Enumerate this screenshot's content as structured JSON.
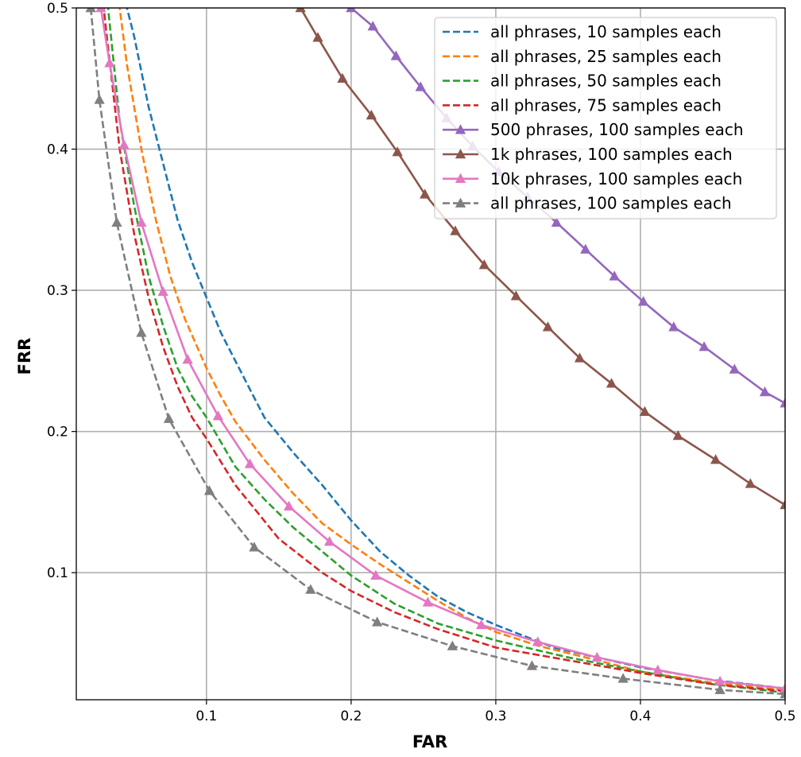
{
  "chart_data": {
    "type": "line",
    "xlabel": "FAR",
    "ylabel": "FRR",
    "xlim": [
      0.01,
      0.5
    ],
    "ylim": [
      0.01,
      0.5
    ],
    "x_ticks": [
      0.1,
      0.2,
      0.3,
      0.4,
      0.5
    ],
    "x_tick_labels": [
      "0.1",
      "0.2",
      "0.3",
      "0.4",
      "0.5"
    ],
    "y_ticks": [
      0.1,
      0.2,
      0.3,
      0.4,
      0.5
    ],
    "y_tick_labels": [
      "0.1",
      "0.2",
      "0.3",
      "0.4",
      "0.5"
    ],
    "grid": true,
    "legend_position": "top-right",
    "series": [
      {
        "name": "all phrases, 10 samples each",
        "color": "#1f77b4",
        "style": "dashed",
        "marker": "none",
        "points": [
          [
            0.04,
            0.54
          ],
          [
            0.045,
            0.5
          ],
          [
            0.05,
            0.48
          ],
          [
            0.06,
            0.43
          ],
          [
            0.07,
            0.39
          ],
          [
            0.08,
            0.35
          ],
          [
            0.09,
            0.32
          ],
          [
            0.1,
            0.295
          ],
          [
            0.11,
            0.27
          ],
          [
            0.12,
            0.25
          ],
          [
            0.13,
            0.23
          ],
          [
            0.14,
            0.21
          ],
          [
            0.16,
            0.185
          ],
          [
            0.18,
            0.162
          ],
          [
            0.2,
            0.137
          ],
          [
            0.22,
            0.115
          ],
          [
            0.24,
            0.098
          ],
          [
            0.26,
            0.083
          ],
          [
            0.28,
            0.072
          ],
          [
            0.3,
            0.063
          ],
          [
            0.32,
            0.055
          ],
          [
            0.34,
            0.047
          ],
          [
            0.37,
            0.04
          ],
          [
            0.4,
            0.033
          ],
          [
            0.45,
            0.024
          ],
          [
            0.5,
            0.018
          ]
        ]
      },
      {
        "name": "all phrases, 25 samples each",
        "color": "#ff7f0e",
        "style": "dashed",
        "marker": "none",
        "points": [
          [
            0.035,
            0.54
          ],
          [
            0.04,
            0.5
          ],
          [
            0.045,
            0.46
          ],
          [
            0.055,
            0.4
          ],
          [
            0.065,
            0.35
          ],
          [
            0.075,
            0.31
          ],
          [
            0.085,
            0.28
          ],
          [
            0.1,
            0.245
          ],
          [
            0.11,
            0.225
          ],
          [
            0.12,
            0.207
          ],
          [
            0.14,
            0.18
          ],
          [
            0.16,
            0.156
          ],
          [
            0.18,
            0.135
          ],
          [
            0.2,
            0.12
          ],
          [
            0.22,
            0.106
          ],
          [
            0.24,
            0.093
          ],
          [
            0.26,
            0.08
          ],
          [
            0.28,
            0.068
          ],
          [
            0.3,
            0.058
          ],
          [
            0.33,
            0.048
          ],
          [
            0.37,
            0.038
          ],
          [
            0.4,
            0.03
          ],
          [
            0.45,
            0.022
          ],
          [
            0.5,
            0.017
          ]
        ]
      },
      {
        "name": "all phrases, 50 samples each",
        "color": "#2ca02c",
        "style": "dashed",
        "marker": "none",
        "points": [
          [
            0.028,
            0.54
          ],
          [
            0.032,
            0.5
          ],
          [
            0.04,
            0.42
          ],
          [
            0.05,
            0.36
          ],
          [
            0.06,
            0.31
          ],
          [
            0.07,
            0.275
          ],
          [
            0.08,
            0.245
          ],
          [
            0.09,
            0.225
          ],
          [
            0.1,
            0.21
          ],
          [
            0.12,
            0.175
          ],
          [
            0.14,
            0.152
          ],
          [
            0.16,
            0.132
          ],
          [
            0.18,
            0.115
          ],
          [
            0.2,
            0.098
          ],
          [
            0.23,
            0.078
          ],
          [
            0.26,
            0.064
          ],
          [
            0.3,
            0.052
          ],
          [
            0.35,
            0.04
          ],
          [
            0.4,
            0.03
          ],
          [
            0.45,
            0.021
          ],
          [
            0.5,
            0.015
          ]
        ]
      },
      {
        "name": "all phrases, 75 samples each",
        "color": "#d62728",
        "style": "dashed",
        "marker": "none",
        "points": [
          [
            0.025,
            0.54
          ],
          [
            0.03,
            0.49
          ],
          [
            0.04,
            0.4
          ],
          [
            0.05,
            0.34
          ],
          [
            0.06,
            0.295
          ],
          [
            0.07,
            0.26
          ],
          [
            0.08,
            0.232
          ],
          [
            0.09,
            0.21
          ],
          [
            0.1,
            0.195
          ],
          [
            0.12,
            0.162
          ],
          [
            0.15,
            0.124
          ],
          [
            0.18,
            0.1
          ],
          [
            0.2,
            0.087
          ],
          [
            0.23,
            0.072
          ],
          [
            0.26,
            0.06
          ],
          [
            0.3,
            0.047
          ],
          [
            0.35,
            0.038
          ],
          [
            0.4,
            0.029
          ],
          [
            0.45,
            0.021
          ],
          [
            0.5,
            0.016
          ]
        ]
      },
      {
        "name": "500 phrases, 100 samples each",
        "color": "#9467bd",
        "style": "solid",
        "marker": "triangle",
        "points": [
          [
            0.2,
            0.5
          ],
          [
            0.215,
            0.487
          ],
          [
            0.231,
            0.466
          ],
          [
            0.248,
            0.444
          ],
          [
            0.266,
            0.422
          ],
          [
            0.284,
            0.402
          ],
          [
            0.302,
            0.384
          ],
          [
            0.322,
            0.366
          ],
          [
            0.342,
            0.348
          ],
          [
            0.362,
            0.329
          ],
          [
            0.382,
            0.31
          ],
          [
            0.402,
            0.292
          ],
          [
            0.423,
            0.274
          ],
          [
            0.444,
            0.26
          ],
          [
            0.465,
            0.244
          ],
          [
            0.486,
            0.228
          ],
          [
            0.5,
            0.22
          ]
        ]
      },
      {
        "name": "1k phrases, 100 samples each",
        "color": "#8c564b",
        "style": "solid",
        "marker": "triangle",
        "points": [
          [
            0.165,
            0.5
          ],
          [
            0.177,
            0.479
          ],
          [
            0.194,
            0.45
          ],
          [
            0.214,
            0.424
          ],
          [
            0.232,
            0.398
          ],
          [
            0.251,
            0.368
          ],
          [
            0.272,
            0.342
          ],
          [
            0.292,
            0.318
          ],
          [
            0.314,
            0.296
          ],
          [
            0.336,
            0.274
          ],
          [
            0.358,
            0.252
          ],
          [
            0.38,
            0.234
          ],
          [
            0.403,
            0.214
          ],
          [
            0.426,
            0.197
          ],
          [
            0.452,
            0.18
          ],
          [
            0.476,
            0.163
          ],
          [
            0.5,
            0.148
          ]
        ]
      },
      {
        "name": "10k phrases, 100 samples each",
        "color": "#e377c2",
        "style": "solid",
        "marker": "triangle",
        "points": [
          [
            0.027,
            0.5
          ],
          [
            0.033,
            0.461
          ],
          [
            0.043,
            0.403
          ],
          [
            0.055,
            0.348
          ],
          [
            0.07,
            0.299
          ],
          [
            0.087,
            0.251
          ],
          [
            0.108,
            0.211
          ],
          [
            0.13,
            0.177
          ],
          [
            0.157,
            0.147
          ],
          [
            0.185,
            0.122
          ],
          [
            0.217,
            0.098
          ],
          [
            0.253,
            0.079
          ],
          [
            0.29,
            0.063
          ],
          [
            0.329,
            0.051
          ],
          [
            0.37,
            0.04
          ],
          [
            0.412,
            0.031
          ],
          [
            0.455,
            0.023
          ],
          [
            0.5,
            0.018
          ]
        ]
      },
      {
        "name": "all phrases, 100 samples each",
        "color": "#7f7f7f",
        "style": "dashed",
        "marker": "triangle",
        "points": [
          [
            0.02,
            0.5
          ],
          [
            0.026,
            0.435
          ],
          [
            0.038,
            0.348
          ],
          [
            0.055,
            0.27
          ],
          [
            0.074,
            0.209
          ],
          [
            0.102,
            0.158
          ],
          [
            0.133,
            0.118
          ],
          [
            0.172,
            0.088
          ],
          [
            0.218,
            0.065
          ],
          [
            0.27,
            0.048
          ],
          [
            0.325,
            0.034
          ],
          [
            0.388,
            0.025
          ],
          [
            0.455,
            0.017
          ],
          [
            0.5,
            0.014
          ]
        ]
      }
    ]
  }
}
